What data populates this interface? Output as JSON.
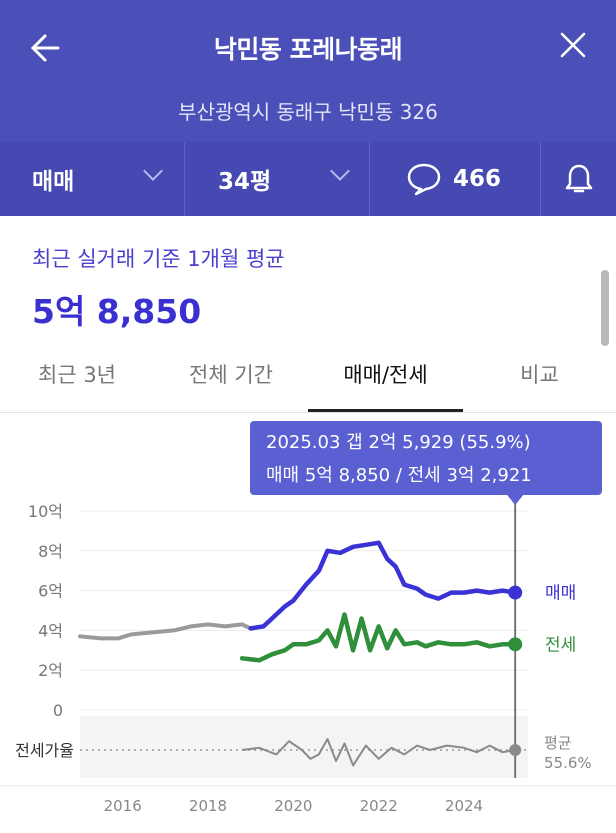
{
  "header": {
    "title": "낙민동 포레나동래",
    "address": "부산광역시 동래구 낙민동 326",
    "trade_type": "매매",
    "size": "34평",
    "comment_count": "466"
  },
  "summary": {
    "caption": "최근 실거래 기준 1개월 평균",
    "price": "5억 8,850"
  },
  "tabs": [
    {
      "label": "최근 3년",
      "active": false
    },
    {
      "label": "전체 기간",
      "active": false
    },
    {
      "label": "매매/전세",
      "active": true
    },
    {
      "label": "비교",
      "active": false
    }
  ],
  "tooltip": {
    "line1": "2025.03  갭 2억 5,929 (55.9%)",
    "line2": "매매 5억 8,850 / 전세 3억 2,921"
  },
  "colors": {
    "header_bg": "#4b4fb8",
    "accent": "#3a2fd0",
    "sale": "#3b32d6",
    "jeonse": "#2f8f3a",
    "ratio": "#8a8a8a"
  },
  "chart_data": {
    "type": "line",
    "xlabel": "",
    "ylabel": "",
    "ylim": [
      0,
      10
    ],
    "y_ticks": [
      {
        "v": 10,
        "label": "10억"
      },
      {
        "v": 8,
        "label": "8억"
      },
      {
        "v": 6,
        "label": "6억"
      },
      {
        "v": 4,
        "label": "4억"
      },
      {
        "v": 2,
        "label": "2억"
      },
      {
        "v": 0,
        "label": "0"
      }
    ],
    "x_ticks": [
      "2016",
      "2018",
      "2020",
      "2022",
      "2024"
    ],
    "xlim": [
      2015.0,
      2025.5
    ],
    "series": [
      {
        "name": "매매",
        "color": "#3b32d6",
        "points": [
          [
            2015.0,
            3.7
          ],
          [
            2015.5,
            3.6
          ],
          [
            2015.9,
            3.6
          ],
          [
            2016.2,
            3.8
          ],
          [
            2016.7,
            3.9
          ],
          [
            2017.2,
            4.0
          ],
          [
            2017.6,
            4.2
          ],
          [
            2018.0,
            4.3
          ],
          [
            2018.4,
            4.2
          ],
          [
            2018.8,
            4.3
          ],
          [
            2019.0,
            4.1
          ],
          [
            2019.3,
            4.2
          ],
          [
            2019.5,
            4.6
          ],
          [
            2019.8,
            5.2
          ],
          [
            2020.0,
            5.5
          ],
          [
            2020.3,
            6.3
          ],
          [
            2020.6,
            7.0
          ],
          [
            2020.8,
            8.0
          ],
          [
            2021.1,
            7.9
          ],
          [
            2021.4,
            8.2
          ],
          [
            2021.7,
            8.3
          ],
          [
            2022.0,
            8.4
          ],
          [
            2022.2,
            7.6
          ],
          [
            2022.4,
            7.2
          ],
          [
            2022.6,
            6.3
          ],
          [
            2022.9,
            6.1
          ],
          [
            2023.1,
            5.8
          ],
          [
            2023.4,
            5.6
          ],
          [
            2023.7,
            5.9
          ],
          [
            2024.0,
            5.9
          ],
          [
            2024.3,
            6.0
          ],
          [
            2024.6,
            5.9
          ],
          [
            2024.9,
            6.0
          ],
          [
            2025.2,
            5.9
          ]
        ]
      },
      {
        "name": "전세",
        "color": "#2f8f3a",
        "points": [
          [
            2018.8,
            2.6
          ],
          [
            2019.2,
            2.5
          ],
          [
            2019.5,
            2.8
          ],
          [
            2019.8,
            3.0
          ],
          [
            2020.0,
            3.3
          ],
          [
            2020.3,
            3.3
          ],
          [
            2020.6,
            3.5
          ],
          [
            2020.8,
            4.0
          ],
          [
            2021.0,
            3.2
          ],
          [
            2021.2,
            4.8
          ],
          [
            2021.4,
            3.0
          ],
          [
            2021.6,
            4.6
          ],
          [
            2021.8,
            3.0
          ],
          [
            2022.0,
            4.2
          ],
          [
            2022.2,
            3.1
          ],
          [
            2022.4,
            4.0
          ],
          [
            2022.6,
            3.3
          ],
          [
            2022.9,
            3.4
          ],
          [
            2023.1,
            3.2
          ],
          [
            2023.4,
            3.4
          ],
          [
            2023.7,
            3.3
          ],
          [
            2024.0,
            3.3
          ],
          [
            2024.3,
            3.4
          ],
          [
            2024.6,
            3.2
          ],
          [
            2024.9,
            3.3
          ],
          [
            2025.2,
            3.3
          ]
        ]
      },
      {
        "name": "평균",
        "color": "#8a8a8a",
        "points": [
          [
            2018.8,
            0.0
          ],
          [
            2019.2,
            0.1
          ],
          [
            2019.6,
            -0.2
          ],
          [
            2019.9,
            0.4
          ],
          [
            2020.2,
            0.0
          ],
          [
            2020.4,
            -0.4
          ],
          [
            2020.6,
            -0.2
          ],
          [
            2020.8,
            0.5
          ],
          [
            2021.0,
            -0.5
          ],
          [
            2021.2,
            0.3
          ],
          [
            2021.4,
            -0.7
          ],
          [
            2021.7,
            0.2
          ],
          [
            2022.0,
            -0.4
          ],
          [
            2022.3,
            0.1
          ],
          [
            2022.6,
            -0.2
          ],
          [
            2022.9,
            0.2
          ],
          [
            2023.2,
            0.0
          ],
          [
            2023.6,
            0.2
          ],
          [
            2024.0,
            0.1
          ],
          [
            2024.3,
            -0.1
          ],
          [
            2024.6,
            0.2
          ],
          [
            2024.9,
            -0.1
          ],
          [
            2025.2,
            0.0
          ]
        ]
      }
    ],
    "end_labels": {
      "sale": "매매",
      "jeonse": "전세",
      "avg_label": "평균",
      "avg_value": "55.6%"
    },
    "ratio_label": "전세가율"
  }
}
